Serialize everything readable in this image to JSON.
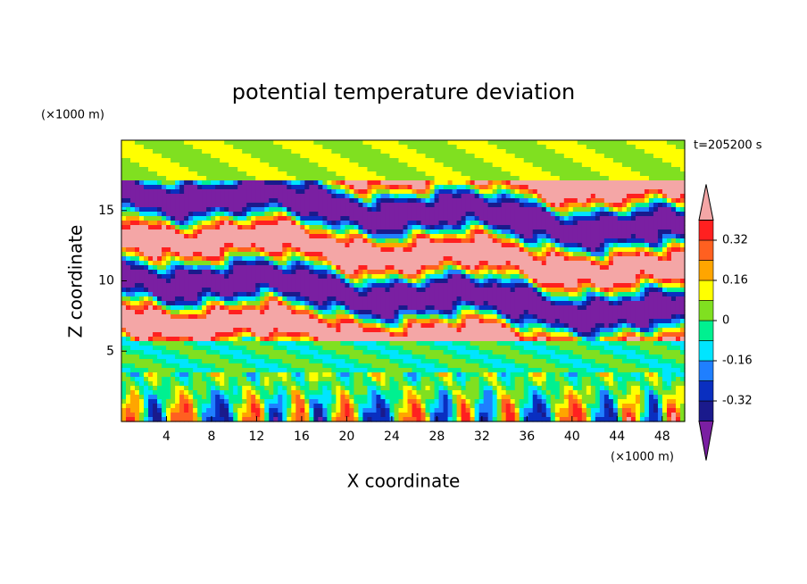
{
  "chart_data": {
    "type": "contour",
    "title": "potential temperature deviation",
    "time_label": "t=205200 s",
    "xlabel": "X coordinate",
    "ylabel": "Z coordinate",
    "x_unit": "(×1000 m)",
    "y_unit": "(×1000 m)",
    "xlim": [
      0,
      50
    ],
    "ylim": [
      0,
      20
    ],
    "xticks": [
      4,
      8,
      12,
      16,
      20,
      24,
      28,
      32,
      36,
      40,
      44,
      48
    ],
    "yticks": [
      5,
      10,
      15
    ],
    "levels": [
      -0.4,
      -0.32,
      -0.24,
      -0.16,
      -0.08,
      0,
      0.08,
      0.16,
      0.24,
      0.32,
      0.4
    ],
    "colorbar_ticks": [
      0.32,
      0.16,
      0,
      -0.16,
      -0.32
    ],
    "colors": [
      "#7a1fa2",
      "#1a1a8c",
      "#0a2fc0",
      "#1f7fff",
      "#00e5ff",
      "#00f090",
      "#80e020",
      "#ffff00",
      "#ffa500",
      "#ff6020",
      "#ff2020",
      "#f4a6a6"
    ]
  }
}
